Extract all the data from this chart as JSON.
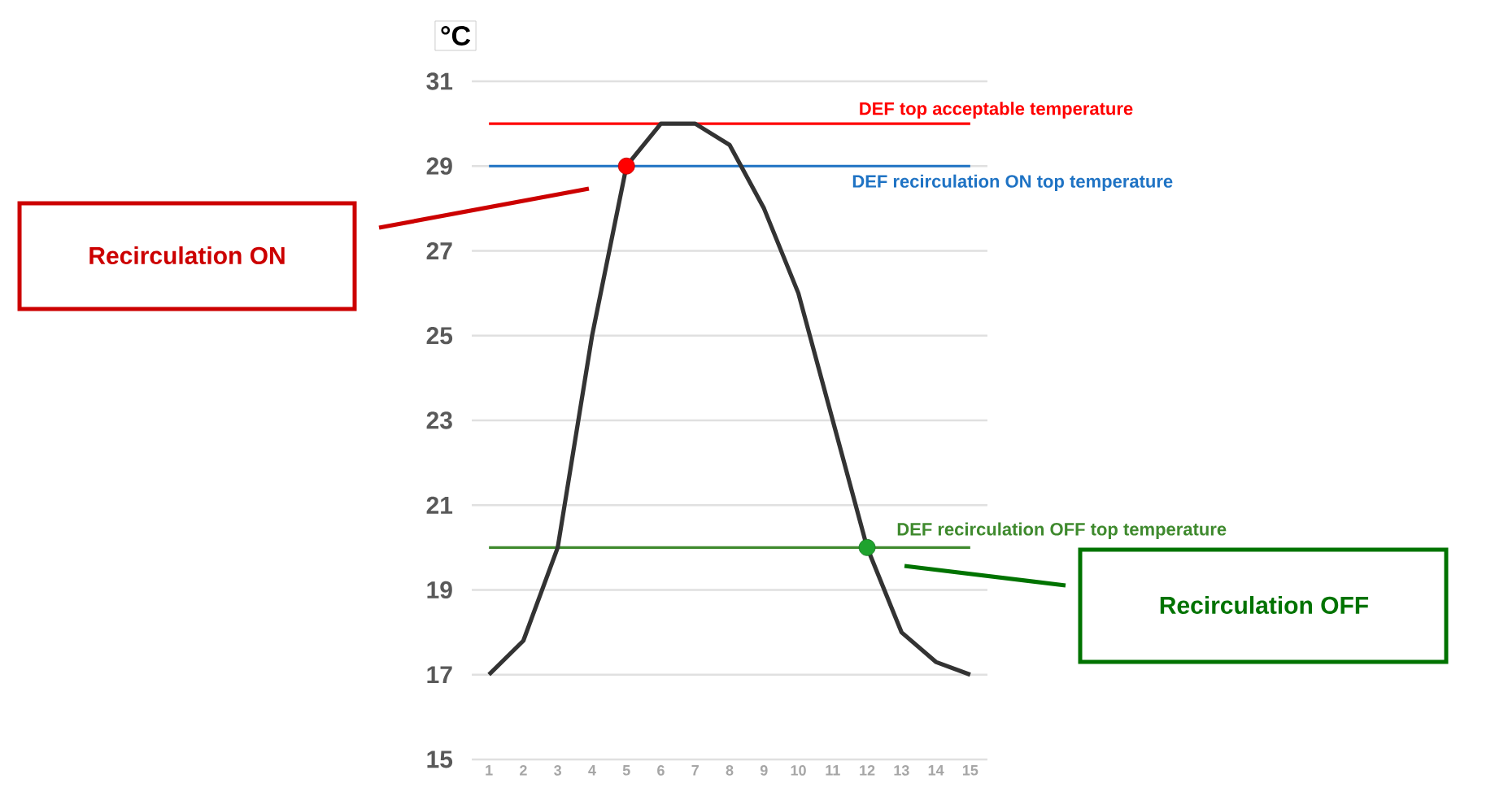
{
  "chart_data": {
    "type": "line",
    "ylabel": "°C",
    "categories": [
      "1",
      "2",
      "3",
      "4",
      "5",
      "6",
      "7",
      "8",
      "9",
      "10",
      "11",
      "12",
      "13",
      "14",
      "15"
    ],
    "series": [
      {
        "color": "#333333",
        "marker": "none",
        "values": [
          17,
          17.8,
          20,
          25,
          29,
          30,
          30,
          29.5,
          28,
          26,
          23,
          20,
          18,
          17.3,
          17
        ]
      },
      {
        "type": "scatter",
        "marker": "circle",
        "x": [
          "5",
          "12"
        ],
        "values": [
          29,
          20
        ],
        "colors": [
          "#ff0000",
          "#1fa32e"
        ]
      }
    ],
    "ylim": [
      15,
      31
    ],
    "yticks": [
      15,
      17,
      19,
      21,
      23,
      25,
      27,
      29,
      31
    ],
    "grid": "y",
    "line_style": "solid",
    "ref_lines": [
      {
        "axis": "y",
        "value": 30,
        "label": "DEF top acceptable temperature",
        "color": "#ff0000"
      },
      {
        "axis": "y",
        "value": 29,
        "label": "DEF recirculation ON top temperature",
        "color": "#1f73c4"
      },
      {
        "axis": "y",
        "value": 20,
        "label": "DEF recirculation OFF top temperature",
        "color": "#3f8a2e"
      }
    ],
    "annotations": [
      "Recirculation ON",
      "Recirculation OFF"
    ]
  }
}
